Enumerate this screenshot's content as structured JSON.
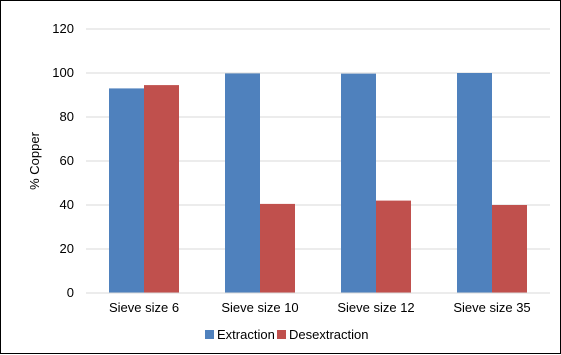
{
  "chart_data": {
    "type": "bar",
    "title": "",
    "xlabel": "",
    "ylabel": "% Copper",
    "ylim": [
      0,
      120
    ],
    "yticks": [
      0,
      20,
      40,
      60,
      80,
      100,
      120
    ],
    "categories": [
      "Sieve size 6",
      "Sieve size 10",
      "Sieve size 12",
      "Sieve size 35"
    ],
    "series": [
      {
        "name": "Extraction",
        "values": [
          93,
          99.8,
          99.7,
          100
        ],
        "color": "#4f81bd"
      },
      {
        "name": "Desextraction",
        "values": [
          94.5,
          40.5,
          42,
          40
        ],
        "color": "#c0504d"
      }
    ],
    "grid": true,
    "legend_position": "bottom"
  }
}
